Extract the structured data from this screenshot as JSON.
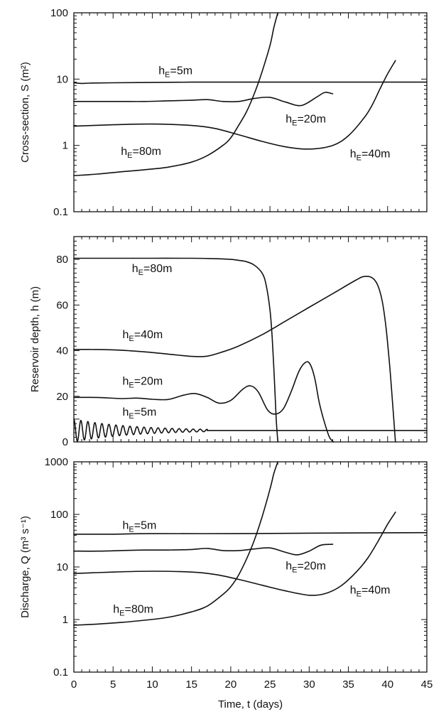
{
  "chart_data": [
    {
      "type": "line",
      "yscale": "log",
      "xlim": [
        0,
        45
      ],
      "ylim": [
        0.1,
        100
      ],
      "xticks": [
        0,
        5,
        10,
        15,
        20,
        25,
        30,
        35,
        40,
        45
      ],
      "yticks": [
        0.1,
        1,
        10,
        100
      ],
      "ytick_labels": [
        "0.1",
        "1",
        "10",
        "100"
      ],
      "ylabel": "Cross-section,  S  (m²)",
      "series": [
        {
          "name": "hE=5m",
          "label": {
            "main": "h",
            "sub": "E",
            "rest": "=5m"
          },
          "x": [
            0,
            1,
            2,
            5,
            10,
            15,
            20,
            25,
            30,
            35,
            40,
            45
          ],
          "y": [
            8.8,
            8.6,
            8.7,
            8.8,
            8.9,
            9.0,
            9.0,
            9.0,
            9.0,
            9.0,
            9.0,
            9.0
          ]
        },
        {
          "name": "hE=20m",
          "label": {
            "main": "h",
            "sub": "E",
            "rest": "=20m"
          },
          "x": [
            0,
            3,
            6,
            9,
            12,
            15,
            17,
            19,
            21,
            23,
            25,
            27,
            29,
            31,
            32,
            33
          ],
          "y": [
            4.6,
            4.6,
            4.6,
            4.6,
            4.7,
            4.8,
            4.9,
            4.6,
            4.6,
            5.1,
            5.3,
            4.5,
            4.0,
            5.4,
            6.3,
            6.0
          ]
        },
        {
          "name": "hE=40m",
          "label": {
            "main": "h",
            "sub": "E",
            "rest": "=40m"
          },
          "x": [
            0,
            5,
            10,
            15,
            18,
            21,
            24,
            27,
            30,
            33,
            35,
            37,
            38,
            39,
            40,
            41
          ],
          "y": [
            1.95,
            2.05,
            2.1,
            2.0,
            1.8,
            1.45,
            1.15,
            0.95,
            0.88,
            1.0,
            1.4,
            2.6,
            4.0,
            7.0,
            12,
            19
          ]
        },
        {
          "name": "hE=80m",
          "label": {
            "main": "h",
            "sub": "E",
            "rest": "=80m"
          },
          "x": [
            0,
            3,
            6,
            9,
            12,
            15,
            17,
            19,
            20,
            21,
            22,
            23,
            24,
            25,
            25.5,
            26
          ],
          "y": [
            0.35,
            0.37,
            0.4,
            0.43,
            0.47,
            0.56,
            0.7,
            1.0,
            1.3,
            2.0,
            3.2,
            6.0,
            13,
            32,
            60,
            100
          ]
        }
      ],
      "annotations": [
        {
          "series": "hE=5m",
          "at": [
            10.8,
            11.8
          ]
        },
        {
          "series": "hE=20m",
          "at": [
            27.0,
            2.2
          ]
        },
        {
          "series": "hE=40m",
          "at": [
            35.2,
            0.66
          ]
        },
        {
          "series": "hE=80m",
          "at": [
            6.0,
            0.72
          ]
        }
      ]
    },
    {
      "type": "line",
      "yscale": "linear",
      "xlim": [
        0,
        45
      ],
      "ylim": [
        0,
        90
      ],
      "xticks": [
        0,
        5,
        10,
        15,
        20,
        25,
        30,
        35,
        40,
        45
      ],
      "yticks": [
        0,
        20,
        40,
        60,
        80
      ],
      "ytick_labels": [
        "0",
        "20",
        "40",
        "60",
        "80"
      ],
      "ylabel": "Reservoir  depth,  h  (m)",
      "series": [
        {
          "name": "hE=80m",
          "label": {
            "main": "h",
            "sub": "E",
            "rest": "=80m"
          },
          "x": [
            0,
            5,
            10,
            15,
            18,
            20,
            21,
            22,
            23,
            24,
            24.5,
            25,
            25.3,
            25.6,
            25.8,
            26
          ],
          "y": [
            80.5,
            80.5,
            80.5,
            80.5,
            80.3,
            80.0,
            79.6,
            79.0,
            77.5,
            74,
            69,
            58,
            45,
            25,
            10,
            0
          ]
        },
        {
          "name": "hE=40m",
          "label": {
            "main": "h",
            "sub": "E",
            "rest": "=40m"
          },
          "x": [
            0,
            3,
            6,
            9,
            12,
            15,
            17,
            19,
            21,
            24,
            27,
            30,
            33,
            36,
            37,
            38,
            38.7,
            39.3,
            39.8,
            40.3,
            40.7,
            41
          ],
          "y": [
            40.5,
            40.5,
            40.2,
            39.5,
            38.5,
            37.5,
            37.6,
            39.5,
            42,
            47,
            53,
            59,
            65,
            71,
            72.5,
            72,
            69,
            62,
            50,
            32,
            14,
            0
          ]
        },
        {
          "name": "hE=20m",
          "label": {
            "main": "h",
            "sub": "E",
            "rest": "=20m"
          },
          "x": [
            0,
            3,
            6,
            8,
            10,
            12,
            14,
            15.5,
            17,
            18.5,
            20,
            21.5,
            22.5,
            23.5,
            24.7,
            25.7,
            26.7,
            27.7,
            28.7,
            29.5,
            30.1,
            30.7,
            31.3,
            32,
            32.6,
            33.1
          ],
          "y": [
            19.5,
            19.5,
            19,
            19.2,
            18.7,
            18.6,
            20.5,
            21.2,
            19.5,
            17,
            18.2,
            23,
            24.6,
            22,
            14,
            12.2,
            14.5,
            22,
            31,
            34.8,
            34.2,
            28,
            17,
            8,
            2,
            0
          ]
        },
        {
          "name": "hE=5m",
          "label": {
            "main": "h",
            "sub": "E",
            "rest": "=5m"
          },
          "oscillation": {
            "center": 5,
            "initial": 10,
            "initial_amplitude": 5,
            "end_amplitude": 0.5,
            "cycles": 19,
            "until": 17
          },
          "x": [
            17,
            30,
            45
          ],
          "y": [
            5,
            5,
            5
          ]
        }
      ],
      "annotations": [
        {
          "series": "hE=80m",
          "at": [
            7.4,
            74.5
          ]
        },
        {
          "series": "hE=40m",
          "at": [
            6.2,
            45.5
          ]
        },
        {
          "series": "hE=20m",
          "at": [
            6.2,
            25
          ]
        },
        {
          "series": "hE=5m",
          "at": [
            6.2,
            11.5
          ]
        }
      ]
    },
    {
      "type": "line",
      "yscale": "log",
      "xlim": [
        0,
        45
      ],
      "ylim": [
        0.1,
        1000
      ],
      "xticks": [
        0,
        5,
        10,
        15,
        20,
        25,
        30,
        35,
        40,
        45
      ],
      "xtick_labels": [
        "0",
        "5",
        "10",
        "15",
        "20",
        "25",
        "30",
        "35",
        "40",
        "45"
      ],
      "yticks": [
        0.1,
        1,
        10,
        100,
        1000
      ],
      "ytick_labels": [
        "0.1",
        "1",
        "10",
        "100",
        "1000"
      ],
      "xlabel": "Time,  t  (days)",
      "ylabel": "Discharge,  Q  (m³ s⁻¹)",
      "series": [
        {
          "name": "hE=5m",
          "label": {
            "main": "h",
            "sub": "E",
            "rest": "=5m"
          },
          "x": [
            0,
            2,
            5,
            10,
            20,
            30,
            45
          ],
          "y": [
            42,
            42,
            42,
            43,
            43,
            44,
            45
          ]
        },
        {
          "name": "hE=20m",
          "label": {
            "main": "h",
            "sub": "E",
            "rest": "=20m"
          },
          "x": [
            0,
            3,
            6,
            9,
            12,
            15,
            17,
            19,
            21,
            23,
            25,
            27,
            28.5,
            30,
            31.5,
            33
          ],
          "y": [
            20,
            20,
            20.5,
            21,
            21,
            21.5,
            22.5,
            20.5,
            20.5,
            22,
            23,
            19,
            17,
            20,
            26,
            27
          ]
        },
        {
          "name": "hE=40m",
          "label": {
            "main": "h",
            "sub": "E",
            "rest": "=40m"
          },
          "x": [
            0,
            5,
            10,
            15,
            18,
            21,
            24,
            27,
            30,
            32,
            34,
            36,
            37.5,
            39,
            40,
            41
          ],
          "y": [
            7.5,
            8,
            8.3,
            8,
            7.2,
            5.8,
            4.5,
            3.5,
            2.9,
            3.1,
            4.3,
            8,
            15,
            35,
            65,
            110
          ]
        },
        {
          "name": "hE=80m",
          "label": {
            "main": "h",
            "sub": "E",
            "rest": "=80m"
          },
          "x": [
            0,
            3,
            6,
            9,
            12,
            15,
            17,
            19,
            20,
            21,
            22,
            23,
            24,
            25,
            25.5,
            26
          ],
          "y": [
            0.78,
            0.82,
            0.88,
            0.97,
            1.1,
            1.4,
            1.8,
            3.0,
            4.2,
            7,
            14,
            32,
            90,
            300,
            600,
            1000
          ]
        }
      ],
      "annotations": [
        {
          "series": "hE=5m",
          "at": [
            6.2,
            53
          ]
        },
        {
          "series": "hE=20m",
          "at": [
            27.0,
            9
          ]
        },
        {
          "series": "hE=40m",
          "at": [
            35.2,
            3.1
          ]
        },
        {
          "series": "hE=80m",
          "at": [
            5.0,
            1.35
          ]
        }
      ]
    }
  ]
}
